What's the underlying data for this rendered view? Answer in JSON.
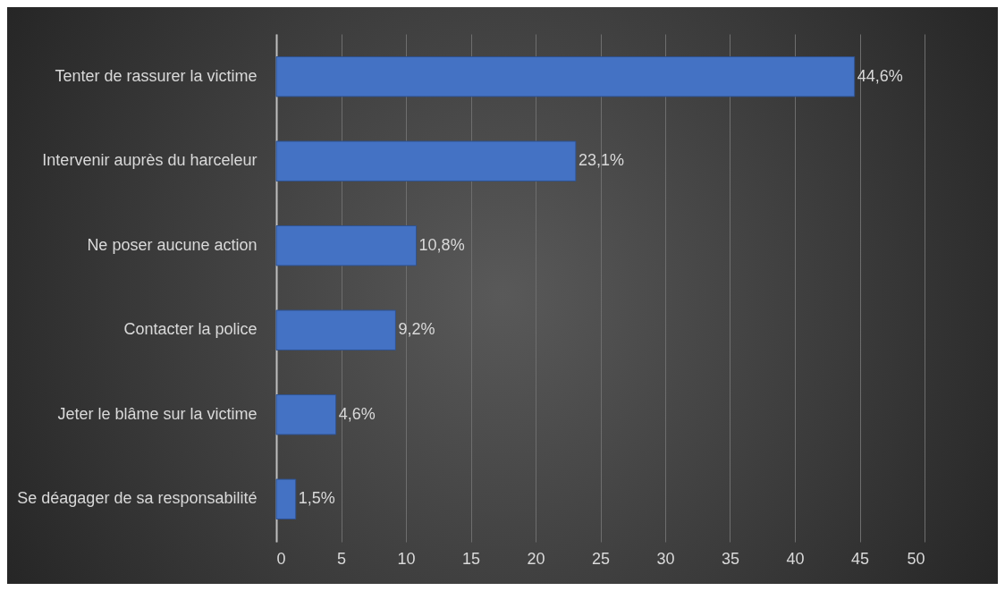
{
  "chart_data": {
    "type": "bar",
    "orientation": "horizontal",
    "categories": [
      "Tenter de rassurer la victime",
      "Intervenir auprès du harceleur",
      "Ne poser aucune action",
      "Contacter la police",
      "Jeter le blâme sur la victime",
      "Se déagager de sa responsabilité"
    ],
    "values": [
      44.6,
      23.1,
      10.8,
      9.2,
      4.6,
      1.5
    ],
    "value_labels": [
      "44,6%",
      "23,1%",
      "10,8%",
      "9,2%",
      "4,6%",
      "1,5%"
    ],
    "color": "#4472c4",
    "xlim": [
      0,
      50
    ],
    "xticks": [
      0,
      5,
      10,
      15,
      20,
      25,
      30,
      35,
      40,
      45,
      50
    ],
    "grid": "x"
  }
}
